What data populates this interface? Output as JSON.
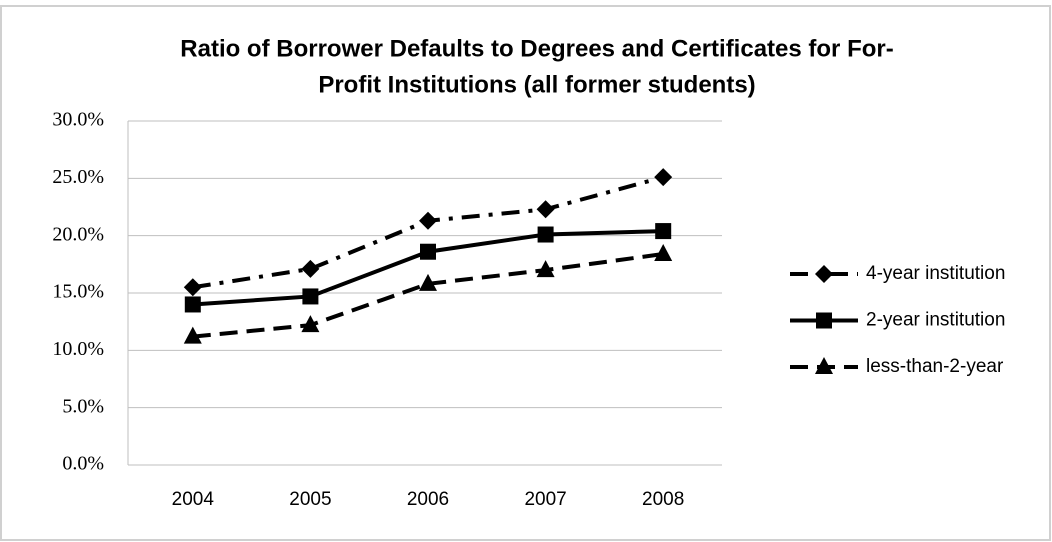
{
  "chart_data": {
    "type": "line",
    "title": [
      "Ratio of Borrower Defaults to Degrees and Certificates for For-",
      "Profit Institutions (all former students)"
    ],
    "categories": [
      "2004",
      "2005",
      "2006",
      "2007",
      "2008"
    ],
    "series": [
      {
        "name": "4-year institution",
        "color": "#000000",
        "dash": "dash-dot",
        "marker": "diamond",
        "values": [
          15.5,
          17.1,
          21.3,
          22.3,
          25.1
        ]
      },
      {
        "name": "2-year institution",
        "color": "#000000",
        "dash": "solid",
        "marker": "square",
        "values": [
          14.0,
          14.7,
          18.6,
          20.1,
          20.4
        ]
      },
      {
        "name": "less-than-2-year",
        "color": "#000000",
        "dash": "dashed",
        "marker": "triangle",
        "values": [
          11.2,
          12.2,
          15.8,
          17.0,
          18.4
        ]
      }
    ],
    "ylim": [
      0,
      30
    ],
    "yticks": [
      {
        "value": 0,
        "label": "0.0%"
      },
      {
        "value": 5,
        "label": "5.0%"
      },
      {
        "value": 10,
        "label": "10.0%"
      },
      {
        "value": 15,
        "label": "15.0%"
      },
      {
        "value": 20,
        "label": "20.0%"
      },
      {
        "value": 25,
        "label": "25.0%"
      },
      {
        "value": 30,
        "label": "30.0%"
      }
    ],
    "grid": true,
    "legend": "right"
  }
}
